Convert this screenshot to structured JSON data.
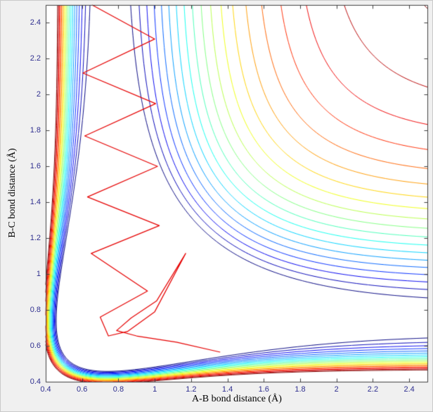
{
  "figure": {
    "background": "#f0f0f0",
    "plot_background": "#ffffff",
    "axis_color": "#404040",
    "tick_label_color": "#2f2f8f",
    "label_color": "#000000"
  },
  "chart_data": {
    "type": "contour",
    "title": "",
    "xlabel": "A-B bond distance (Å)",
    "ylabel": "B-C bond distance (Å)",
    "xlim": [
      0.4,
      2.5
    ],
    "ylim": [
      0.4,
      2.5
    ],
    "grid": false,
    "legend": "none",
    "x_ticks": [
      0.4,
      0.6,
      0.8,
      1.0,
      1.2,
      1.4,
      1.6,
      1.8,
      2.0,
      2.2,
      2.4
    ],
    "x_tick_labels": [
      "0.4",
      "0.6",
      "0.8",
      "1",
      "1.2",
      "1.4",
      "1.6",
      "1.8",
      "2",
      "2.2",
      "2.4"
    ],
    "y_ticks": [
      0.4,
      0.6,
      0.8,
      1.0,
      1.2,
      1.4,
      1.6,
      1.8,
      2.0,
      2.2,
      2.4
    ],
    "y_tick_labels": [
      "0.4",
      "0.6",
      "0.8",
      "1",
      "1.2",
      "1.4",
      "1.6",
      "1.8",
      "2",
      "2.2",
      "2.4"
    ],
    "colormap": "jet",
    "surface_model": {
      "type": "sum-of-morse-potentials",
      "formula": "V(x,y)=(1-exp(-a(x-re)))^2+(1-exp(-a(y-re)))^2",
      "a": 2.5,
      "re": 0.74
    },
    "contour_levels": [
      1.05,
      1.1,
      1.15,
      1.2,
      1.25,
      1.3,
      1.35,
      1.4,
      1.45,
      1.5,
      1.55,
      1.6,
      1.65,
      1.7,
      1.75,
      1.8,
      1.85,
      1.9,
      1.95
    ],
    "trajectory": {
      "color": "#e60000",
      "points": [
        [
          0.655,
          2.5
        ],
        [
          1.0,
          2.31
        ],
        [
          0.605,
          2.12
        ],
        [
          1.005,
          1.95
        ],
        [
          0.615,
          1.77
        ],
        [
          1.015,
          1.6
        ],
        [
          0.63,
          1.43
        ],
        [
          1.025,
          1.27
        ],
        [
          0.65,
          1.115
        ],
        [
          0.96,
          0.905
        ],
        [
          0.7,
          0.76
        ],
        [
          0.745,
          0.655
        ],
        [
          0.85,
          0.68
        ],
        [
          1.0,
          0.79
        ],
        [
          1.17,
          1.115
        ],
        [
          1.01,
          0.85
        ],
        [
          0.87,
          0.755
        ],
        [
          0.79,
          0.685
        ],
        [
          0.9,
          0.655
        ],
        [
          1.12,
          0.62
        ],
        [
          1.36,
          0.565
        ]
      ]
    }
  }
}
